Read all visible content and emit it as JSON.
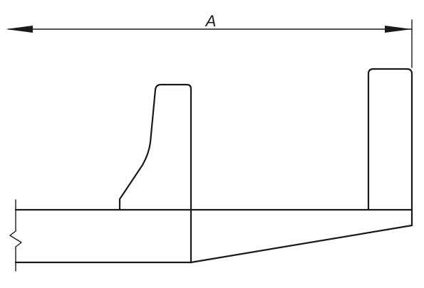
{
  "dimension": {
    "label": "A"
  }
}
